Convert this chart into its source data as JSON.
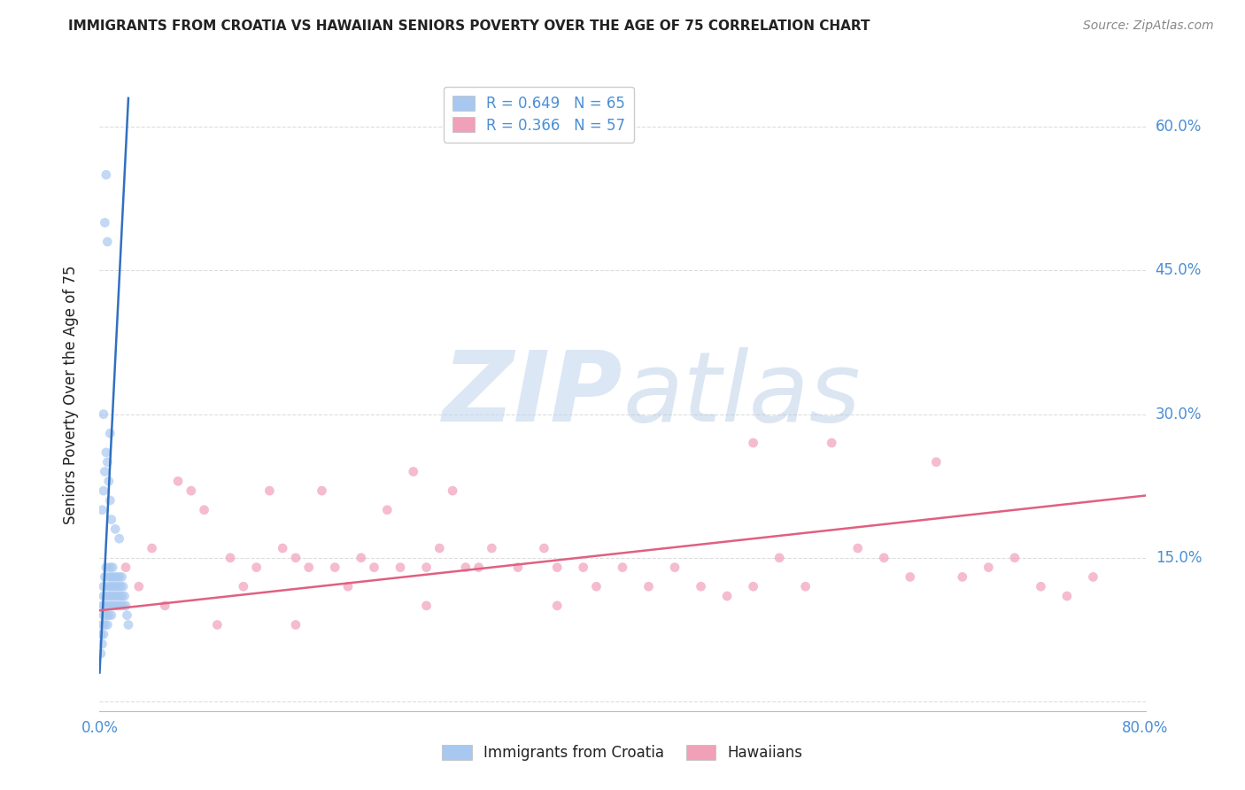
{
  "title": "IMMIGRANTS FROM CROATIA VS HAWAIIAN SENIORS POVERTY OVER THE AGE OF 75 CORRELATION CHART",
  "source": "Source: ZipAtlas.com",
  "ylabel": "Seniors Poverty Over the Age of 75",
  "yaxis_ticks": [
    0.0,
    0.15,
    0.3,
    0.45,
    0.6
  ],
  "yaxis_tick_labels": [
    "",
    "15.0%",
    "30.0%",
    "45.0%",
    "60.0%"
  ],
  "xlim": [
    0.0,
    0.8
  ],
  "ylim": [
    -0.01,
    0.65
  ],
  "legend_entries": [
    {
      "label": "R = 0.649   N = 65",
      "color": "#a8c8f0"
    },
    {
      "label": "R = 0.366   N = 57",
      "color": "#f0a0b8"
    }
  ],
  "croatia_scatter_x": [
    0.001,
    0.001,
    0.002,
    0.002,
    0.002,
    0.003,
    0.003,
    0.003,
    0.003,
    0.004,
    0.004,
    0.004,
    0.005,
    0.005,
    0.005,
    0.006,
    0.006,
    0.006,
    0.007,
    0.007,
    0.007,
    0.008,
    0.008,
    0.008,
    0.009,
    0.009,
    0.009,
    0.01,
    0.01,
    0.01,
    0.011,
    0.011,
    0.012,
    0.012,
    0.013,
    0.013,
    0.014,
    0.014,
    0.015,
    0.015,
    0.016,
    0.016,
    0.017,
    0.017,
    0.018,
    0.018,
    0.019,
    0.02,
    0.021,
    0.022,
    0.002,
    0.003,
    0.004,
    0.005,
    0.006,
    0.007,
    0.008,
    0.009,
    0.012,
    0.015,
    0.003,
    0.004,
    0.005,
    0.006,
    0.008
  ],
  "croatia_scatter_y": [
    0.05,
    0.07,
    0.06,
    0.08,
    0.1,
    0.07,
    0.09,
    0.11,
    0.12,
    0.08,
    0.1,
    0.13,
    0.09,
    0.11,
    0.14,
    0.08,
    0.1,
    0.12,
    0.09,
    0.11,
    0.13,
    0.1,
    0.12,
    0.14,
    0.09,
    0.11,
    0.13,
    0.1,
    0.12,
    0.14,
    0.11,
    0.13,
    0.1,
    0.12,
    0.11,
    0.13,
    0.1,
    0.12,
    0.11,
    0.13,
    0.1,
    0.12,
    0.11,
    0.13,
    0.1,
    0.12,
    0.11,
    0.1,
    0.09,
    0.08,
    0.2,
    0.22,
    0.24,
    0.26,
    0.25,
    0.23,
    0.21,
    0.19,
    0.18,
    0.17,
    0.3,
    0.5,
    0.55,
    0.48,
    0.28
  ],
  "croatia_line_x": [
    0.0,
    0.022
  ],
  "croatia_line_y": [
    0.03,
    0.63
  ],
  "hawaiians_scatter_x": [
    0.02,
    0.04,
    0.06,
    0.07,
    0.08,
    0.1,
    0.11,
    0.12,
    0.13,
    0.14,
    0.15,
    0.16,
    0.17,
    0.18,
    0.19,
    0.2,
    0.21,
    0.22,
    0.23,
    0.24,
    0.25,
    0.26,
    0.27,
    0.28,
    0.29,
    0.3,
    0.32,
    0.34,
    0.35,
    0.37,
    0.38,
    0.4,
    0.42,
    0.44,
    0.46,
    0.48,
    0.5,
    0.52,
    0.54,
    0.56,
    0.58,
    0.6,
    0.62,
    0.64,
    0.66,
    0.68,
    0.7,
    0.72,
    0.74,
    0.76,
    0.03,
    0.05,
    0.09,
    0.15,
    0.25,
    0.35,
    0.5
  ],
  "hawaiians_scatter_y": [
    0.14,
    0.16,
    0.23,
    0.22,
    0.2,
    0.15,
    0.12,
    0.14,
    0.22,
    0.16,
    0.15,
    0.14,
    0.22,
    0.14,
    0.12,
    0.15,
    0.14,
    0.2,
    0.14,
    0.24,
    0.14,
    0.16,
    0.22,
    0.14,
    0.14,
    0.16,
    0.14,
    0.16,
    0.14,
    0.14,
    0.12,
    0.14,
    0.12,
    0.14,
    0.12,
    0.11,
    0.27,
    0.15,
    0.12,
    0.27,
    0.16,
    0.15,
    0.13,
    0.25,
    0.13,
    0.14,
    0.15,
    0.12,
    0.11,
    0.13,
    0.12,
    0.1,
    0.08,
    0.08,
    0.1,
    0.1,
    0.12
  ],
  "hawaiians_line_x": [
    0.0,
    0.8
  ],
  "hawaiians_line_y": [
    0.095,
    0.215
  ],
  "croatia_name": "Immigrants from Croatia",
  "hawaiians_name": "Hawaiians",
  "croatia_color": "#a8c8f0",
  "hawaiians_color": "#f0a0b8",
  "croatia_line_color": "#3070c0",
  "hawaiians_line_color": "#e06080",
  "background_color": "#ffffff",
  "grid_color": "#dddddd",
  "title_color": "#222222",
  "source_color": "#888888",
  "axis_label_color": "#4a8fd5"
}
